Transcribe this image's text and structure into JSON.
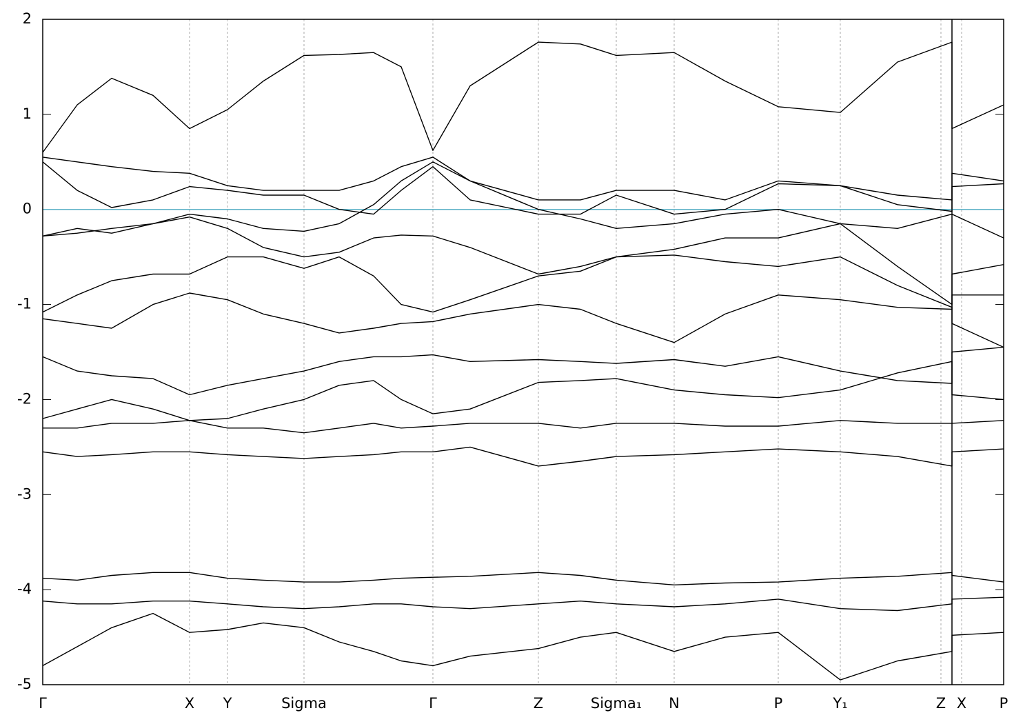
{
  "chart_data": {
    "type": "line",
    "x": [
      0,
      50,
      100,
      160,
      213,
      268,
      320,
      379,
      430,
      480,
      520,
      566,
      620,
      719,
      780,
      832,
      916,
      990,
      1067,
      1157,
      1240,
      1319,
      1319,
      1394
    ],
    "xlim": [
      0,
      1394
    ],
    "xticks": [
      {
        "value": 0,
        "label": "Γ"
      },
      {
        "value": 213,
        "label": "X"
      },
      {
        "value": 268,
        "label": "Y"
      },
      {
        "value": 379,
        "label": "Sigma"
      },
      {
        "value": 566,
        "label": "Γ"
      },
      {
        "value": 719,
        "label": "Z"
      },
      {
        "value": 832,
        "label": "Sigma₁"
      },
      {
        "value": 916,
        "label": "N"
      },
      {
        "value": 1067,
        "label": "P"
      },
      {
        "value": 1157,
        "label": "Y₁"
      },
      {
        "value": 1303,
        "label": "Z"
      },
      {
        "value": 1333,
        "label": "X"
      },
      {
        "value": 1394,
        "label": "P"
      }
    ],
    "ylim": [
      -5,
      2
    ],
    "yticks": [
      2,
      1,
      0,
      -1,
      -2,
      -3,
      -4,
      -5
    ],
    "grid": true,
    "color": "#000000",
    "reference_line": {
      "y": 0,
      "color": "#5fb3c8"
    },
    "series": [
      {
        "values": [
          0.6,
          1.1,
          1.38,
          1.2,
          0.85,
          1.05,
          1.35,
          1.62,
          1.63,
          1.65,
          1.5,
          0.62,
          1.3,
          1.76,
          1.74,
          1.62,
          1.65,
          1.35,
          1.08,
          1.02,
          1.55,
          1.76,
          0.85,
          1.1
        ]
      },
      {
        "values": [
          0.55,
          0.5,
          0.45,
          0.4,
          0.38,
          0.25,
          0.2,
          0.2,
          0.2,
          0.3,
          0.45,
          0.55,
          0.3,
          0.1,
          0.1,
          0.2,
          0.2,
          0.1,
          0.3,
          0.25,
          0.15,
          0.1,
          0.38,
          0.3
        ]
      },
      {
        "values": [
          0.5,
          0.2,
          0.02,
          0.1,
          0.24,
          0.2,
          0.15,
          0.15,
          0.0,
          -0.05,
          0.2,
          0.45,
          0.1,
          -0.05,
          -0.05,
          0.15,
          -0.05,
          0.0,
          0.27,
          0.25,
          0.05,
          -0.02,
          0.24,
          0.27
        ]
      },
      {
        "values": [
          -0.28,
          -0.25,
          -0.2,
          -0.15,
          -0.05,
          -0.1,
          -0.2,
          -0.23,
          -0.15,
          0.05,
          0.3,
          0.5,
          0.3,
          0.0,
          -0.1,
          -0.2,
          -0.15,
          -0.05,
          0.0,
          -0.15,
          -0.2,
          -0.05,
          -0.05,
          -0.3
        ]
      },
      {
        "values": [
          -1.08,
          -0.9,
          -0.75,
          -0.68,
          -0.68,
          -0.5,
          -0.5,
          -0.62,
          -0.5,
          -0.7,
          -1.0,
          -1.08,
          -0.95,
          -0.7,
          -0.65,
          -0.5,
          -0.42,
          -0.3,
          -0.3,
          -0.15,
          -0.6,
          -1.0,
          -0.68,
          -0.58
        ]
      },
      {
        "values": [
          -0.28,
          -0.2,
          -0.25,
          -0.15,
          -0.08,
          -0.2,
          -0.4,
          -0.5,
          -0.45,
          -0.3,
          -0.27,
          -0.28,
          -0.4,
          -0.68,
          -0.6,
          -0.5,
          -0.48,
          -0.55,
          -0.6,
          -0.5,
          -0.8,
          -1.03,
          -1.2,
          -1.45
        ]
      },
      {
        "values": [
          -1.15,
          -1.2,
          -1.25,
          -1.0,
          -0.88,
          -0.95,
          -1.1,
          -1.2,
          -1.3,
          -1.25,
          -1.2,
          -1.18,
          -1.1,
          -1.0,
          -1.05,
          -1.2,
          -1.4,
          -1.1,
          -0.9,
          -0.95,
          -1.03,
          -1.05,
          -0.9,
          -0.9
        ]
      },
      {
        "values": [
          -1.55,
          -1.7,
          -1.75,
          -1.78,
          -1.95,
          -1.85,
          -1.78,
          -1.7,
          -1.6,
          -1.55,
          -1.55,
          -1.53,
          -1.6,
          -1.58,
          -1.6,
          -1.62,
          -1.58,
          -1.65,
          -1.55,
          -1.7,
          -1.8,
          -1.83,
          -1.5,
          -1.45
        ]
      },
      {
        "values": [
          -2.2,
          -2.1,
          -2.0,
          -2.1,
          -2.22,
          -2.2,
          -2.1,
          -2.0,
          -1.85,
          -1.8,
          -2.0,
          -2.15,
          -2.1,
          -1.82,
          -1.8,
          -1.78,
          -1.9,
          -1.95,
          -1.98,
          -1.9,
          -1.72,
          -1.6,
          -1.95,
          -2.0
        ]
      },
      {
        "values": [
          -2.3,
          -2.3,
          -2.25,
          -2.25,
          -2.22,
          -2.3,
          -2.3,
          -2.35,
          -2.3,
          -2.25,
          -2.3,
          -2.28,
          -2.25,
          -2.25,
          -2.3,
          -2.25,
          -2.25,
          -2.28,
          -2.28,
          -2.22,
          -2.25,
          -2.25,
          -2.25,
          -2.22
        ]
      },
      {
        "values": [
          -2.55,
          -2.6,
          -2.58,
          -2.55,
          -2.55,
          -2.58,
          -2.6,
          -2.62,
          -2.6,
          -2.58,
          -2.55,
          -2.55,
          -2.5,
          -2.7,
          -2.65,
          -2.6,
          -2.58,
          -2.55,
          -2.52,
          -2.55,
          -2.6,
          -2.7,
          -2.55,
          -2.52
        ]
      },
      {
        "values": [
          -3.88,
          -3.9,
          -3.85,
          -3.82,
          -3.82,
          -3.88,
          -3.9,
          -3.92,
          -3.92,
          -3.9,
          -3.88,
          -3.87,
          -3.86,
          -3.82,
          -3.85,
          -3.9,
          -3.95,
          -3.93,
          -3.92,
          -3.88,
          -3.86,
          -3.82,
          -3.85,
          -3.92
        ]
      },
      {
        "values": [
          -4.12,
          -4.15,
          -4.15,
          -4.12,
          -4.12,
          -4.15,
          -4.18,
          -4.2,
          -4.18,
          -4.15,
          -4.15,
          -4.18,
          -4.2,
          -4.15,
          -4.12,
          -4.15,
          -4.18,
          -4.15,
          -4.1,
          -4.2,
          -4.22,
          -4.15,
          -4.1,
          -4.08
        ]
      },
      {
        "values": [
          -4.8,
          -4.6,
          -4.4,
          -4.25,
          -4.45,
          -4.42,
          -4.35,
          -4.4,
          -4.55,
          -4.65,
          -4.75,
          -4.8,
          -4.7,
          -4.62,
          -4.5,
          -4.45,
          -4.65,
          -4.5,
          -4.45,
          -4.95,
          -4.75,
          -4.65,
          -4.48,
          -4.45
        ]
      }
    ]
  }
}
